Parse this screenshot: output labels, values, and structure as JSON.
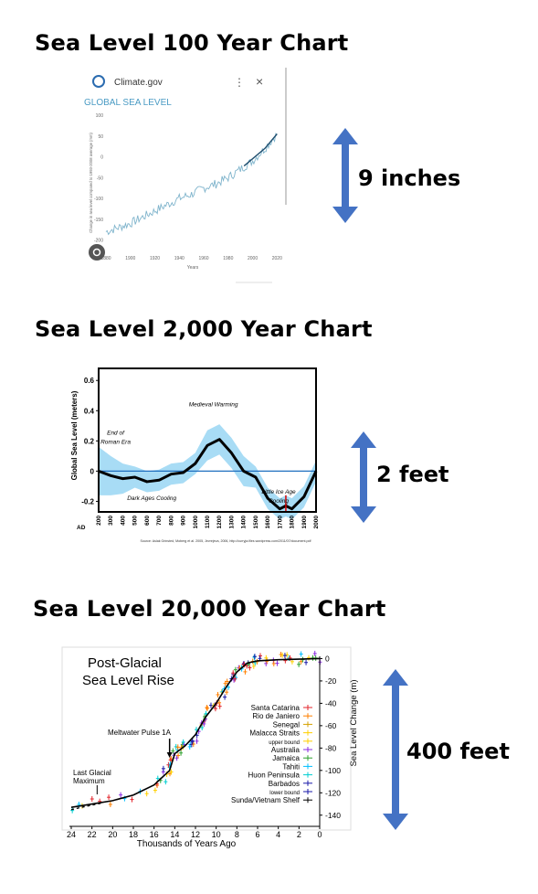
{
  "sections": [
    {
      "title": "Sea Level 100 Year Chart",
      "arrow_label": "9 inches"
    },
    {
      "title": "Sea Level 2,000 Year Chart",
      "arrow_label": "2 feet"
    },
    {
      "title": "Sea Level 20,000 Year Chart",
      "arrow_label": "400 feet"
    }
  ],
  "colors": {
    "arrow": "#4472c4",
    "line1": "#4a8fa8",
    "band2": "#a8dcf5",
    "zero2": "#1f6fbf"
  },
  "chart_data": [
    {
      "type": "line",
      "source_label": "Climate.gov",
      "title": "GLOBAL SEA LEVEL",
      "ylabel": "Change in sea level compared to 1993-2008 average (mm)",
      "xlabel": "Years",
      "x_ticks": [
        "1880",
        "1900",
        "1920",
        "1940",
        "1960",
        "1980",
        "2000",
        "2020"
      ],
      "y_ticks": [
        "100",
        "50",
        "0",
        "-50",
        "-100",
        "-150",
        "-200"
      ],
      "xlim": [
        1880,
        2022
      ],
      "ylim": [
        -225,
        100
      ],
      "series": [
        {
          "x": [
            1880,
            1890,
            1900,
            1910,
            1920,
            1930,
            1940,
            1950,
            1960,
            1970,
            1980,
            1990,
            2000,
            2010,
            2020
          ],
          "values": [
            -180,
            -170,
            -160,
            -145,
            -130,
            -115,
            -100,
            -90,
            -75,
            -65,
            -50,
            -30,
            -10,
            20,
            55
          ]
        }
      ]
    },
    {
      "type": "line",
      "ylabel": "Global Sea Level (meters)",
      "x_prefix": "AD",
      "x_ticks": [
        "200",
        "300",
        "400",
        "500",
        "600",
        "700",
        "800",
        "900",
        "1000",
        "1100",
        "1200",
        "1300",
        "1400",
        "1500",
        "1600",
        "1700",
        "1800",
        "1900",
        "2000"
      ],
      "y_ticks": [
        "0.6",
        "0.4",
        "0.2",
        "0",
        "-0.2"
      ],
      "xlim": [
        200,
        2000
      ],
      "ylim": [
        -0.27,
        0.68
      ],
      "annotations": [
        "Medieval Warming",
        "End of Roman Era",
        "Dark Ages Cooling",
        "Little Ice Age Cooling"
      ],
      "source": "Source: Aslak Grinsted, Moberg et al. 2005, Jevrejeva, 2006, http://curryja.files.wordpress.com/2011/07/document.pdf",
      "series": [
        {
          "x": [
            200,
            300,
            400,
            500,
            600,
            700,
            800,
            900,
            1000,
            1100,
            1200,
            1300,
            1400,
            1500,
            1600,
            1700,
            1750,
            1800,
            1900,
            2000
          ],
          "values": [
            0.0,
            -0.03,
            -0.05,
            -0.04,
            -0.07,
            -0.06,
            -0.02,
            -0.01,
            0.05,
            0.17,
            0.21,
            0.12,
            0.0,
            -0.04,
            -0.18,
            -0.25,
            -0.23,
            -0.25,
            -0.17,
            0.0
          ]
        }
      ]
    },
    {
      "type": "scatter",
      "title": "Post-Glacial Sea Level Rise",
      "xlabel": "Thousands of Years Ago",
      "ylabel": "Sea Level Change (m)",
      "x_ticks": [
        "24",
        "22",
        "20",
        "18",
        "16",
        "14",
        "12",
        "10",
        "8",
        "6",
        "4",
        "2",
        "0"
      ],
      "y_ticks": [
        "0",
        "-20",
        "-40",
        "-60",
        "-80",
        "-100",
        "-120",
        "-140"
      ],
      "xlim": [
        24,
        0
      ],
      "ylim": [
        -150,
        2
      ],
      "annotations": [
        "Meltwater Pulse 1A",
        "Last Glacial Maximum"
      ],
      "legend": [
        "Santa Catarina",
        "Rio de Janiero",
        "Senegal",
        "Malacca Straits",
        "upper bound",
        "Australia",
        "Jamaica",
        "Tahiti",
        "Huon Peninsula",
        "Barbados",
        "lower bound",
        "Sunda/Vietnam Shelf"
      ],
      "series": [
        {
          "x": [
            24,
            22,
            20,
            18,
            16,
            14.5,
            14,
            13,
            12,
            11,
            10,
            9,
            8,
            7,
            6,
            4,
            2,
            0
          ],
          "values": [
            -133,
            -130,
            -127,
            -122,
            -113,
            -100,
            -85,
            -78,
            -68,
            -52,
            -40,
            -25,
            -12,
            -4,
            -2,
            -1,
            -0.5,
            0
          ]
        }
      ]
    }
  ]
}
